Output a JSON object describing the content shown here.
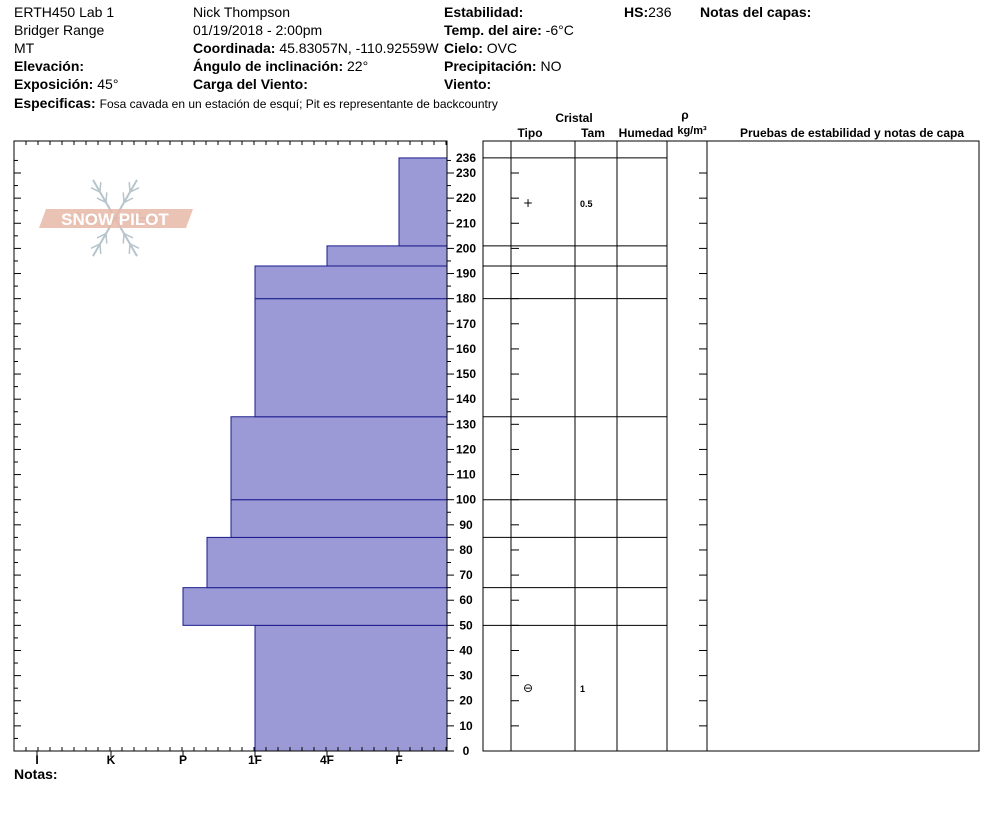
{
  "header": {
    "course": "ERTH450 Lab 1",
    "range": "Bridger Range",
    "state": "MT",
    "elevation_label": "Elevación:",
    "exposure_label": "Exposición:",
    "exposure_value": "45°",
    "specifics_label": "Especificas:",
    "specifics_value": "Fosa cavada en un estación de esquí; Pit es representante de backcountry",
    "observer": "Nick Thompson",
    "datetime": "01/19/2018 - 2:00pm",
    "coord_label": "Coordinada:",
    "coord_value": "45.83057N, -110.92559W",
    "slope_label": "Ángulo de inclinación:",
    "slope_value": "22°",
    "wind_load_label": "Carga del Viento:",
    "stability_label": "Estabilidad:",
    "air_temp_label": "Temp. del aire:",
    "air_temp_value": "-6°C",
    "sky_label": "Cielo:",
    "sky_value": "OVC",
    "precip_label": "Precipitación:",
    "precip_value": "NO",
    "wind_label": "Viento:",
    "hs_label": "HS:",
    "hs_value": "236",
    "layer_notes_label": "Notas del capas:"
  },
  "table_headers": {
    "cristal": "Cristal",
    "tipo": "Tipo",
    "tam": "Tam",
    "humedad": "Humedad",
    "rho": "ρ",
    "density_unit": "kg/m³",
    "pruebas": "Pruebas de estabilidad y notas de capa"
  },
  "footer": {
    "notas_label": "Notas:"
  },
  "logo": {
    "text": "SNOW PILOT",
    "color": "#e8b8a8",
    "flake_color": "#b8c4cc"
  },
  "chart_data": {
    "type": "bar",
    "orientation": "horizontal",
    "y_axis": {
      "label": "",
      "range": [
        0,
        236
      ],
      "ticks": [
        0,
        10,
        20,
        30,
        40,
        50,
        60,
        70,
        80,
        90,
        100,
        110,
        120,
        130,
        140,
        150,
        160,
        170,
        180,
        190,
        200,
        210,
        220,
        230,
        236
      ]
    },
    "x_axis": {
      "categories": [
        "I",
        "K",
        "P",
        "1F",
        "4F",
        "F"
      ],
      "reversed": true
    },
    "bar_color": "#9b9ad6",
    "layers": [
      {
        "bottom": 0,
        "top": 50,
        "hardness": "1F"
      },
      {
        "bottom": 50,
        "top": 65,
        "hardness": "P"
      },
      {
        "bottom": 65,
        "top": 85,
        "hardness": "P+"
      },
      {
        "bottom": 85,
        "top": 100,
        "hardness": "1F-"
      },
      {
        "bottom": 100,
        "top": 133,
        "hardness": "1F-"
      },
      {
        "bottom": 133,
        "top": 180,
        "hardness": "1F"
      },
      {
        "bottom": 180,
        "top": 193,
        "hardness": "1F"
      },
      {
        "bottom": 193,
        "top": 201,
        "hardness": "4F"
      },
      {
        "bottom": 201,
        "top": 236,
        "hardness": "F"
      }
    ],
    "crystals": [
      {
        "height": 218,
        "type_symbol": "+",
        "size": "0.5"
      },
      {
        "height": 25,
        "type_symbol": "⊖",
        "size": "1"
      }
    ]
  }
}
